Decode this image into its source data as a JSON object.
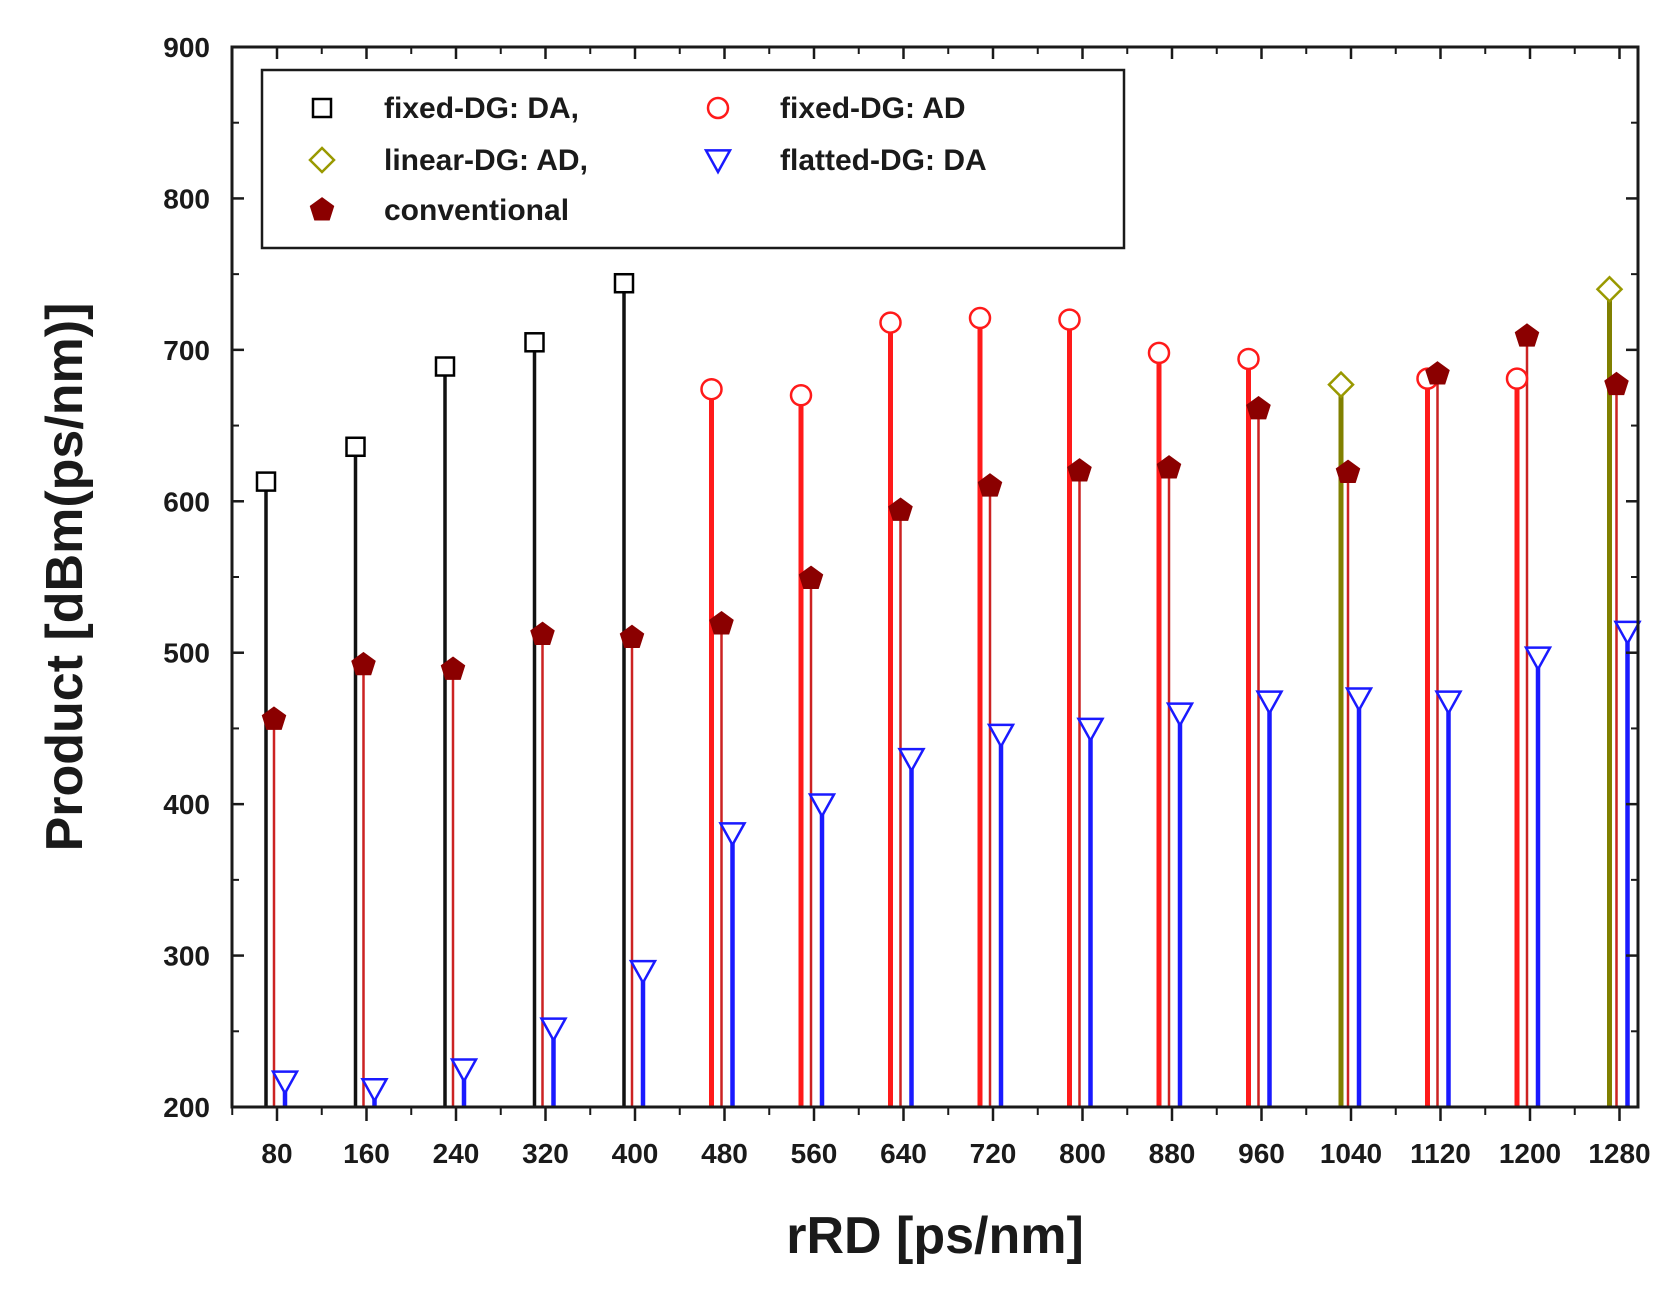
{
  "chart_data": {
    "type": "scatter",
    "subtype": "stem",
    "xlabel": "rRD [ps/nm]",
    "ylabel": "Product [dBm(ps/nm)]",
    "ylim": [
      200,
      900
    ],
    "yticks": [
      200,
      300,
      400,
      500,
      600,
      700,
      800,
      900
    ],
    "categories": [
      "80",
      "160",
      "240",
      "320",
      "400",
      "480",
      "560",
      "640",
      "720",
      "800",
      "880",
      "960",
      "1040",
      "1120",
      "1200",
      "1280"
    ],
    "tick_labels": [
      "80",
      "160",
      "240",
      "320",
      "400",
      "480",
      "560",
      "640",
      "720",
      "800",
      "880",
      "960",
      "1040",
      "1120",
      "1200",
      "1280"
    ],
    "legend_position": "top-left",
    "series": [
      {
        "name": "fixed-DG: DA,",
        "marker": "square",
        "color": "#000000",
        "x": [
          80,
          160,
          240,
          320,
          400
        ],
        "values": [
          613,
          636,
          689,
          705,
          744
        ]
      },
      {
        "name": "fixed-DG: AD",
        "marker": "circle",
        "color": "#ff1a1a",
        "x": [
          480,
          560,
          640,
          720,
          800,
          880,
          960,
          1120,
          1200
        ],
        "values": [
          674,
          670,
          718,
          721,
          720,
          698,
          694,
          681,
          681
        ]
      },
      {
        "name": "linear-DG: AD,",
        "marker": "diamond",
        "color": "#999900",
        "x": [
          1040,
          1280
        ],
        "values": [
          677,
          740
        ]
      },
      {
        "name": "flatted-DG: DA",
        "marker": "triangle-down",
        "color": "#1a1aff",
        "x": [
          80,
          160,
          240,
          320,
          400,
          480,
          560,
          640,
          720,
          800,
          880,
          960,
          1040,
          1120,
          1200,
          1280
        ],
        "values": [
          217,
          212,
          225,
          252,
          290,
          381,
          400,
          430,
          446,
          450,
          460,
          468,
          470,
          468,
          497,
          514
        ]
      },
      {
        "name": "conventional",
        "marker": "pentagon",
        "color": "#8b0000",
        "x": [
          80,
          160,
          240,
          320,
          400,
          480,
          560,
          640,
          720,
          800,
          880,
          960,
          1040,
          1120,
          1200,
          1280
        ],
        "values": [
          456,
          492,
          489,
          512,
          510,
          519,
          549,
          594,
          610,
          620,
          622,
          661,
          619,
          684,
          709,
          677
        ]
      }
    ],
    "legend": [
      {
        "label": "fixed-DG: DA,",
        "marker": "square",
        "color": "#000000"
      },
      {
        "label": "fixed-DG: AD",
        "marker": "circle",
        "color": "#ff1a1a"
      },
      {
        "label": "linear-DG: AD,",
        "marker": "diamond",
        "color": "#999900"
      },
      {
        "label": "flatted-DG: DA",
        "marker": "triangle-down",
        "color": "#1a1aff"
      },
      {
        "label": "conventional",
        "marker": "pentagon",
        "color": "#8b0000"
      }
    ]
  }
}
